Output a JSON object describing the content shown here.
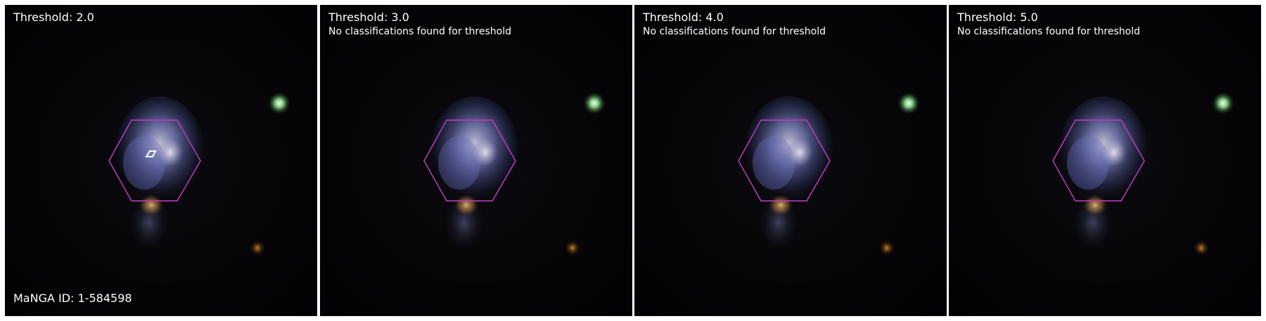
{
  "panels": [
    {
      "threshold_label": "Threshold: 2.0",
      "note": "",
      "id_label": "MaNGA ID: 1-584598",
      "has_contour": true
    },
    {
      "threshold_label": "Threshold: 3.0",
      "note": "No classifications found for threshold",
      "id_label": "",
      "has_contour": false
    },
    {
      "threshold_label": "Threshold: 4.0",
      "note": "No classifications found for threshold",
      "id_label": "",
      "has_contour": false
    },
    {
      "threshold_label": "Threshold: 5.0",
      "note": "No classifications found for threshold",
      "id_label": "",
      "has_contour": false
    }
  ],
  "colors": {
    "background": "#050507",
    "hexagon_outline": "#c83cc8",
    "galaxy_core": "#d7d3e4",
    "galaxy_disk": "#7f86c7",
    "bulge_orange": "#d8a050",
    "bright_star": "#c8ffc8",
    "faint_star": "#c07020",
    "contour": "#ffffff",
    "text": "#ffffff"
  }
}
